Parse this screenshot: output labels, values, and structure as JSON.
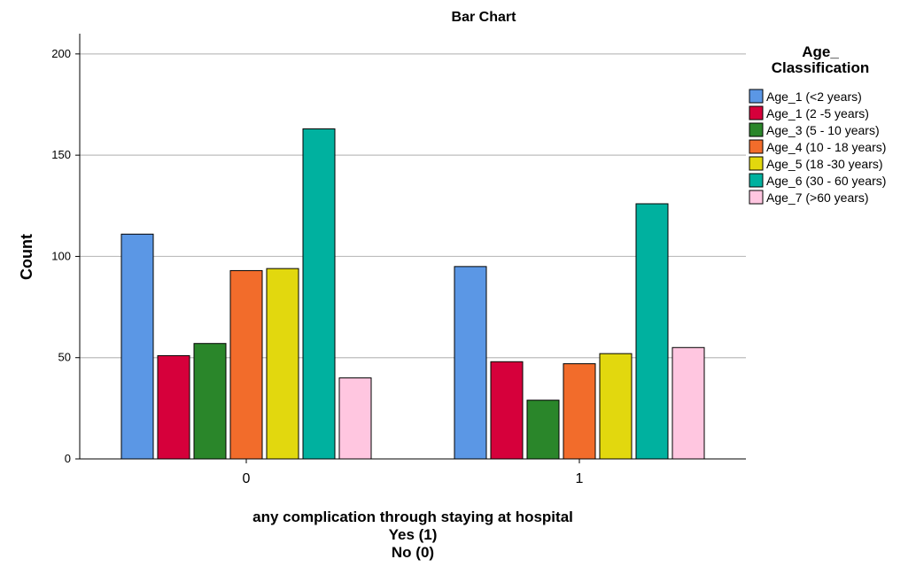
{
  "chart_data": {
    "type": "bar",
    "title": "Bar Chart",
    "xlabel_lines": [
      "any complication through staying at hospital",
      "Yes (1)",
      "No (0)"
    ],
    "ylabel": "Count",
    "ylim": [
      0,
      210
    ],
    "yticks": [
      0,
      50,
      100,
      150,
      200
    ],
    "categories": [
      "0",
      "1"
    ],
    "grid": true,
    "legend_title_lines": [
      "Age_",
      "Classification"
    ],
    "legend_position": "right",
    "series": [
      {
        "name": "Age_1 (<2 years)",
        "color": "#5b97e5",
        "values": [
          111,
          95
        ]
      },
      {
        "name": "Age_1 (2 -5  years)",
        "color": "#d6003b",
        "values": [
          51,
          48
        ]
      },
      {
        "name": "Age_3 (5 - 10 years)",
        "color": "#2a862a",
        "values": [
          57,
          29
        ]
      },
      {
        "name": "Age_4 (10 - 18 years)",
        "color": "#f26c2b",
        "values": [
          93,
          47
        ]
      },
      {
        "name": "Age_5 (18 -30 years)",
        "color": "#e2d80e",
        "values": [
          94,
          52
        ]
      },
      {
        "name": "Age_6 (30 - 60 years)",
        "color": "#00b19f",
        "values": [
          163,
          126
        ]
      },
      {
        "name": "Age_7 (>60 years)",
        "color": "#ffc6e0",
        "values": [
          40,
          55
        ]
      }
    ]
  }
}
